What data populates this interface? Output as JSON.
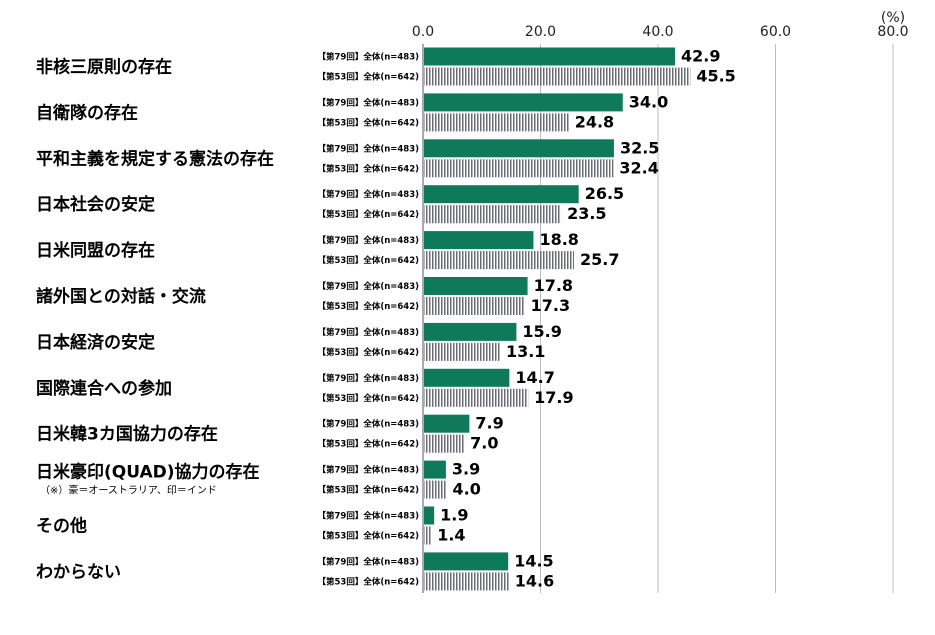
{
  "colors": {
    "series1": "#0e7a5a",
    "series2_stripe": "#6b6b78",
    "grid": "#bdbdbd",
    "axis": "#555555"
  },
  "chart_data": {
    "type": "bar",
    "orientation": "horizontal",
    "unit": "(%)",
    "xlim": [
      0,
      80
    ],
    "ticks": [
      "0.0",
      "20.0",
      "40.0",
      "60.0",
      "80.0"
    ],
    "tick_values": [
      0,
      20,
      40,
      60,
      80
    ],
    "grid": true,
    "series": [
      {
        "name": "【第79回】全体(n=483)",
        "style": "solid",
        "values": [
          42.9,
          34.0,
          32.5,
          26.5,
          18.8,
          17.8,
          15.9,
          14.7,
          7.9,
          3.9,
          1.9,
          14.5
        ],
        "labels": [
          "42.9",
          "34.0",
          "32.5",
          "26.5",
          "18.8",
          "17.8",
          "15.9",
          "14.7",
          "7.9",
          "3.9",
          "1.9",
          "14.5"
        ]
      },
      {
        "name": "【第53回】全体(n=642)",
        "style": "striped",
        "values": [
          45.5,
          24.8,
          32.4,
          23.5,
          25.7,
          17.3,
          13.1,
          17.9,
          7.0,
          4.0,
          1.4,
          14.6
        ],
        "labels": [
          "45.5",
          "24.8",
          "32.4",
          "23.5",
          "25.7",
          "17.3",
          "13.1",
          "17.9",
          "7.0",
          "4.0",
          "1.4",
          "14.6"
        ]
      }
    ],
    "categories": [
      "非核三原則の存在",
      "自衛隊の存在",
      "平和主義を規定する憲法の存在",
      "日本社会の安定",
      "日米同盟の存在",
      "諸外国との対話・交流",
      "日本経済の安定",
      "国際連合への参加",
      "日米韓3カ国協力の存在",
      "日米豪印(QUAD)協力の存在",
      "その他",
      "わからない"
    ],
    "notes": {
      "9": "（※）豪＝オーストラリア、印＝インド"
    }
  }
}
